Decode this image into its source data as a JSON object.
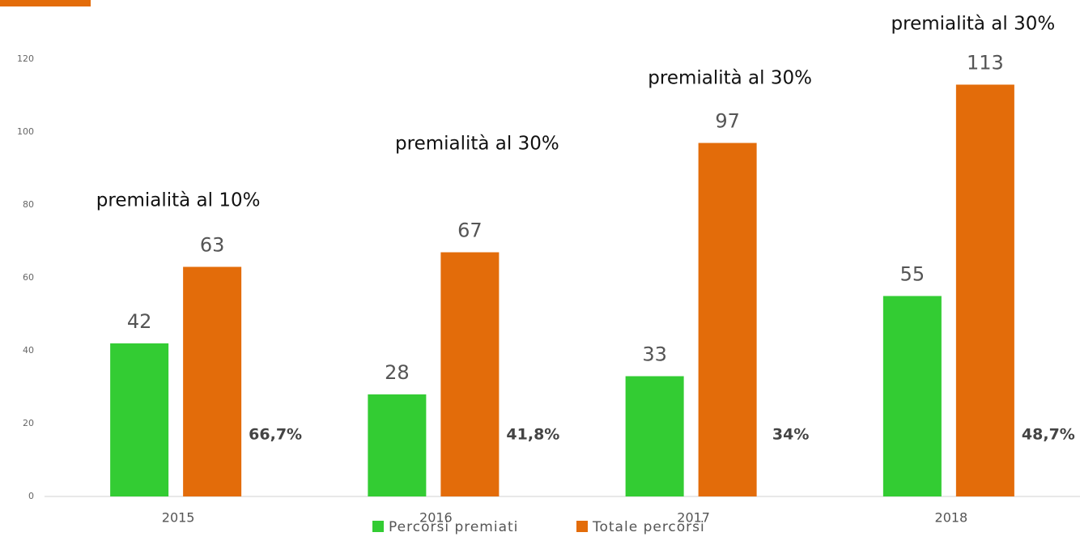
{
  "chart_data": {
    "type": "bar",
    "categories": [
      "2015",
      "2016",
      "2017",
      "2018"
    ],
    "series": [
      {
        "name": "Percorsi premiati",
        "color": "#33cc33",
        "values": [
          42,
          28,
          33,
          55
        ]
      },
      {
        "name": "Totale percorsi",
        "color": "#e36c0a",
        "values": [
          63,
          67,
          97,
          113
        ]
      }
    ],
    "annotations": [
      "premialità al 10%",
      "premialità al 30%",
      "premialità al 30%",
      "premialità al 30%"
    ],
    "ratio_labels": [
      "66,7%",
      "41,8%",
      "34%",
      "48,7%"
    ],
    "ylim": [
      0,
      120
    ],
    "yticks": [
      0,
      20,
      40,
      60,
      80,
      100,
      120
    ],
    "grid": false
  }
}
